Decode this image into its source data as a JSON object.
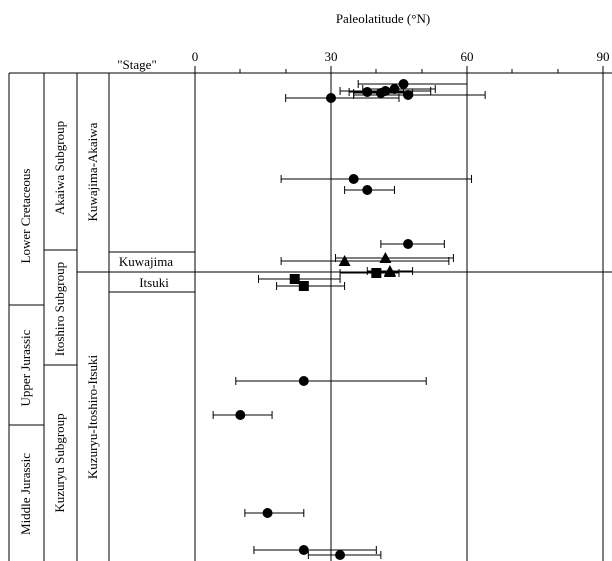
{
  "chart_data": {
    "type": "scatter",
    "title": "Paleolatitude (°N)",
    "x_ticks": [
      "0",
      "30",
      "60",
      "90"
    ],
    "xlim": [
      0,
      90
    ],
    "stage_header": "\"Stage\"",
    "periods": [
      "Lower Cretaceous",
      "Upper Jurassic",
      "Middle Jurassic"
    ],
    "subgroups": [
      "Akaiwa Subgroup",
      "Itoshiro Subgroup",
      "Kuzuryu Subgroup"
    ],
    "formations": [
      "Kuwajima-Akaiwa",
      "Kuzuryu-Itoshiro-Itsuki"
    ],
    "stages": [
      "Kuwajima",
      "Itsuki"
    ],
    "marker_legend": {
      "circle": "",
      "triangle": "",
      "square": ""
    },
    "points": [
      {
        "marker": "circle",
        "lat": 46,
        "min": 36,
        "max": 60
      },
      {
        "marker": "circle",
        "lat": 44,
        "min": 37,
        "max": 53
      },
      {
        "marker": "circle",
        "lat": 42,
        "min": 32,
        "max": 52
      },
      {
        "marker": "circle",
        "lat": 38,
        "min": 34,
        "max": 46
      },
      {
        "marker": "circle",
        "lat": 41,
        "min": 35,
        "max": 48
      },
      {
        "marker": "circle",
        "lat": 47,
        "min": 35,
        "max": 64
      },
      {
        "marker": "circle",
        "lat": 30,
        "min": 20,
        "max": 45
      },
      {
        "marker": "circle",
        "lat": 35,
        "min": 19,
        "max": 61
      },
      {
        "marker": "circle",
        "lat": 38,
        "min": 33,
        "max": 44
      },
      {
        "marker": "circle",
        "lat": 47,
        "min": 41,
        "max": 55
      },
      {
        "marker": "triangle",
        "lat": 42,
        "min": 31,
        "max": 57
      },
      {
        "marker": "triangle",
        "lat": 33,
        "min": 19,
        "max": 56
      },
      {
        "marker": "triangle",
        "lat": 43,
        "min": 38,
        "max": 48
      },
      {
        "marker": "triangle",
        "lat": 43,
        "min": 0,
        "max": 92
      },
      {
        "marker": "square",
        "lat": 40,
        "min": 32,
        "max": 45
      },
      {
        "marker": "square",
        "lat": 22,
        "min": 14,
        "max": 32
      },
      {
        "marker": "square",
        "lat": 24,
        "min": 18,
        "max": 33
      },
      {
        "marker": "circle",
        "lat": 24,
        "min": 9,
        "max": 51
      },
      {
        "marker": "circle",
        "lat": 10,
        "min": 4,
        "max": 17
      },
      {
        "marker": "circle",
        "lat": 16,
        "min": 11,
        "max": 24
      },
      {
        "marker": "circle",
        "lat": 24,
        "min": 13,
        "max": 40
      },
      {
        "marker": "circle",
        "lat": 32,
        "min": 25,
        "max": 41
      }
    ]
  }
}
